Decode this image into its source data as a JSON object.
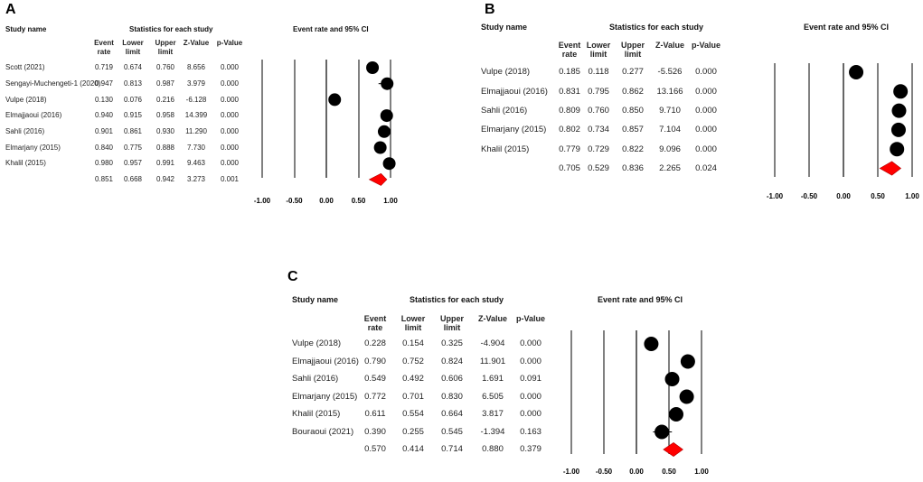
{
  "panels": [
    {
      "id": "A",
      "headers": {
        "study_name": "Study name",
        "stats_title": "Statistics for each study",
        "plot_title": "Event rate and 95% CI",
        "columns": [
          [
            "Event",
            "rate"
          ],
          [
            "Lower",
            "limit"
          ],
          [
            "Upper",
            "limit"
          ],
          [
            "Z-Value",
            ""
          ],
          [
            "p-Value",
            ""
          ]
        ]
      },
      "rows": [
        {
          "name": "Scott (2021)",
          "values": [
            "0.719",
            "0.674",
            "0.760",
            "8.656",
            "0.000"
          ]
        },
        {
          "name": "Sengayi-Muchengeti-1 (2020)",
          "values": [
            "0.947",
            "0.813",
            "0.987",
            "3.979",
            "0.000"
          ]
        },
        {
          "name": "Vulpe (2018)",
          "values": [
            "0.130",
            "0.076",
            "0.216",
            "-6.128",
            "0.000"
          ]
        },
        {
          "name": "Elmajjaoui (2016)",
          "values": [
            "0.940",
            "0.915",
            "0.958",
            "14.399",
            "0.000"
          ]
        },
        {
          "name": "Sahli (2016)",
          "values": [
            "0.901",
            "0.861",
            "0.930",
            "11.290",
            "0.000"
          ]
        },
        {
          "name": "Elmarjany (2015)",
          "values": [
            "0.840",
            "0.775",
            "0.888",
            "7.730",
            "0.000"
          ]
        },
        {
          "name": "Khalil (2015)",
          "values": [
            "0.980",
            "0.957",
            "0.991",
            "9.463",
            "0.000"
          ]
        }
      ],
      "summary": {
        "name": "",
        "values": [
          "0.851",
          "0.668",
          "0.942",
          "3.273",
          "0.001"
        ]
      },
      "ticks": [
        "-1.00",
        "-0.50",
        "0.00",
        "0.50",
        "1.00"
      ]
    },
    {
      "id": "B",
      "headers": {
        "study_name": "Study name",
        "stats_title": "Statistics for each study",
        "plot_title": "Event rate and 95% CI",
        "columns": [
          [
            "Event",
            "rate"
          ],
          [
            "Lower",
            "limit"
          ],
          [
            "Upper",
            "limit"
          ],
          [
            "Z-Value",
            ""
          ],
          [
            "p-Value",
            ""
          ]
        ]
      },
      "rows": [
        {
          "name": "Vulpe (2018)",
          "values": [
            "0.185",
            "0.118",
            "0.277",
            "-5.526",
            "0.000"
          ]
        },
        {
          "name": "Elmajjaoui (2016)",
          "values": [
            "0.831",
            "0.795",
            "0.862",
            "13.166",
            "0.000"
          ]
        },
        {
          "name": "Sahli (2016)",
          "values": [
            "0.809",
            "0.760",
            "0.850",
            "9.710",
            "0.000"
          ]
        },
        {
          "name": "Elmarjany (2015)",
          "values": [
            "0.802",
            "0.734",
            "0.857",
            "7.104",
            "0.000"
          ]
        },
        {
          "name": "Khalil (2015)",
          "values": [
            "0.779",
            "0.729",
            "0.822",
            "9.096",
            "0.000"
          ]
        }
      ],
      "summary": {
        "name": "",
        "values": [
          "0.705",
          "0.529",
          "0.836",
          "2.265",
          "0.024"
        ]
      },
      "ticks": [
        "-1.00",
        "-0.50",
        "0.00",
        "0.50",
        "1.00"
      ]
    },
    {
      "id": "C",
      "headers": {
        "study_name": "Study name",
        "stats_title": "Statistics for each study",
        "plot_title": "Event rate and 95% CI",
        "columns": [
          [
            "Event",
            "rate"
          ],
          [
            "Lower",
            "limit"
          ],
          [
            "Upper",
            "limit"
          ],
          [
            "Z-Value",
            ""
          ],
          [
            "p-Value",
            ""
          ]
        ]
      },
      "rows": [
        {
          "name": "Vulpe (2018)",
          "values": [
            "0.228",
            "0.154",
            "0.325",
            "-4.904",
            "0.000"
          ]
        },
        {
          "name": "Elmajjaoui (2016)",
          "values": [
            "0.790",
            "0.752",
            "0.824",
            "11.901",
            "0.000"
          ]
        },
        {
          "name": "Sahli (2016)",
          "values": [
            "0.549",
            "0.492",
            "0.606",
            "1.691",
            "0.091"
          ]
        },
        {
          "name": "Elmarjany (2015)",
          "values": [
            "0.772",
            "0.701",
            "0.830",
            "6.505",
            "0.000"
          ]
        },
        {
          "name": "Khalil (2015)",
          "values": [
            "0.611",
            "0.554",
            "0.664",
            "3.817",
            "0.000"
          ]
        },
        {
          "name": "Bouraoui (2021)",
          "values": [
            "0.390",
            "0.255",
            "0.545",
            "-1.394",
            "0.163"
          ]
        }
      ],
      "summary": {
        "name": "",
        "values": [
          "0.570",
          "0.414",
          "0.714",
          "0.880",
          "0.379"
        ]
      },
      "ticks": [
        "-1.00",
        "-0.50",
        "0.00",
        "0.50",
        "1.00"
      ]
    }
  ],
  "chart_data": [
    {
      "type": "forest",
      "panel": "A",
      "title": "Event rate and 95% CI",
      "xlim": [
        -1.0,
        1.0
      ],
      "xticks": [
        -1.0,
        -0.5,
        0.0,
        0.5,
        1.0
      ],
      "studies": [
        {
          "name": "Scott (2021)",
          "estimate": 0.719,
          "lower": 0.674,
          "upper": 0.76
        },
        {
          "name": "Sengayi-Muchengeti-1 (2020)",
          "estimate": 0.947,
          "lower": 0.813,
          "upper": 0.987
        },
        {
          "name": "Vulpe (2018)",
          "estimate": 0.13,
          "lower": 0.076,
          "upper": 0.216
        },
        {
          "name": "Elmajjaoui (2016)",
          "estimate": 0.94,
          "lower": 0.915,
          "upper": 0.958
        },
        {
          "name": "Sahli (2016)",
          "estimate": 0.901,
          "lower": 0.861,
          "upper": 0.93
        },
        {
          "name": "Elmarjany (2015)",
          "estimate": 0.84,
          "lower": 0.775,
          "upper": 0.888
        },
        {
          "name": "Khalil (2015)",
          "estimate": 0.98,
          "lower": 0.957,
          "upper": 0.991
        }
      ],
      "pooled": {
        "estimate": 0.851,
        "lower": 0.668,
        "upper": 0.942
      },
      "colors": {
        "marker": "#000000",
        "pooled": "#ff0000"
      }
    },
    {
      "type": "forest",
      "panel": "B",
      "title": "Event rate and 95% CI",
      "xlim": [
        -1.0,
        1.0
      ],
      "xticks": [
        -1.0,
        -0.5,
        0.0,
        0.5,
        1.0
      ],
      "studies": [
        {
          "name": "Vulpe (2018)",
          "estimate": 0.185,
          "lower": 0.118,
          "upper": 0.277
        },
        {
          "name": "Elmajjaoui (2016)",
          "estimate": 0.831,
          "lower": 0.795,
          "upper": 0.862
        },
        {
          "name": "Sahli (2016)",
          "estimate": 0.809,
          "lower": 0.76,
          "upper": 0.85
        },
        {
          "name": "Elmarjany (2015)",
          "estimate": 0.802,
          "lower": 0.734,
          "upper": 0.857
        },
        {
          "name": "Khalil (2015)",
          "estimate": 0.779,
          "lower": 0.729,
          "upper": 0.822
        }
      ],
      "pooled": {
        "estimate": 0.705,
        "lower": 0.529,
        "upper": 0.836
      },
      "colors": {
        "marker": "#000000",
        "pooled": "#ff0000"
      }
    },
    {
      "type": "forest",
      "panel": "C",
      "title": "Event rate and 95% CI",
      "xlim": [
        -1.0,
        1.0
      ],
      "xticks": [
        -1.0,
        -0.5,
        0.0,
        0.5,
        1.0
      ],
      "studies": [
        {
          "name": "Vulpe (2018)",
          "estimate": 0.228,
          "lower": 0.154,
          "upper": 0.325
        },
        {
          "name": "Elmajjaoui (2016)",
          "estimate": 0.79,
          "lower": 0.752,
          "upper": 0.824
        },
        {
          "name": "Sahli (2016)",
          "estimate": 0.549,
          "lower": 0.492,
          "upper": 0.606
        },
        {
          "name": "Elmarjany (2015)",
          "estimate": 0.772,
          "lower": 0.701,
          "upper": 0.83
        },
        {
          "name": "Khalil (2015)",
          "estimate": 0.611,
          "lower": 0.554,
          "upper": 0.664
        },
        {
          "name": "Bouraoui (2021)",
          "estimate": 0.39,
          "lower": 0.255,
          "upper": 0.545
        }
      ],
      "pooled": {
        "estimate": 0.57,
        "lower": 0.414,
        "upper": 0.714
      },
      "colors": {
        "marker": "#000000",
        "pooled": "#ff0000"
      }
    }
  ]
}
